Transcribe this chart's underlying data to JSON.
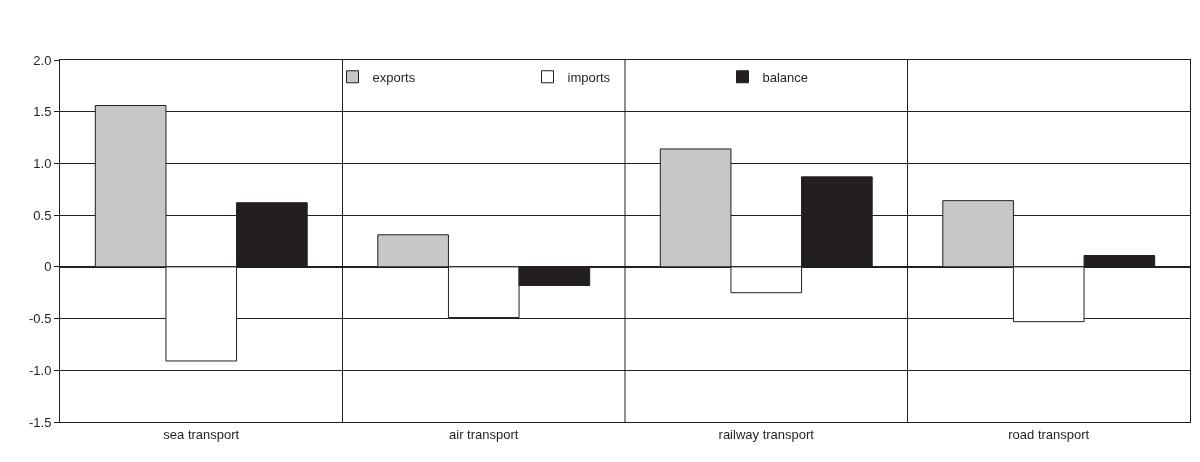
{
  "chart_data": {
    "type": "bar",
    "categories": [
      "sea transport",
      "air transport",
      "railway transport",
      "road transport"
    ],
    "series": [
      {
        "name": "exports",
        "color": "#c6c7c9",
        "values": [
          1.56,
          0.31,
          1.14,
          0.64
        ]
      },
      {
        "name": "imports",
        "color": "#ffffff",
        "values": [
          -0.91,
          -0.49,
          -0.25,
          -0.53
        ]
      },
      {
        "name": "balance",
        "color": "#231f20",
        "values": [
          0.62,
          -0.18,
          0.87,
          0.11
        ]
      }
    ],
    "ylim": [
      -1.5,
      2.0
    ],
    "yticks": [
      {
        "value": -1.5,
        "label": "-1.5"
      },
      {
        "value": -1.0,
        "label": "-1.0"
      },
      {
        "value": -0.5,
        "label": "-0.5"
      },
      0,
      {
        "value": 0.5,
        "label": "0.5"
      },
      {
        "value": 1.0,
        "label": "1.0"
      },
      {
        "value": 1.5,
        "label": "1.5"
      },
      {
        "value": 2.0,
        "label": "2.0"
      }
    ],
    "grid": true,
    "legend": "top"
  }
}
